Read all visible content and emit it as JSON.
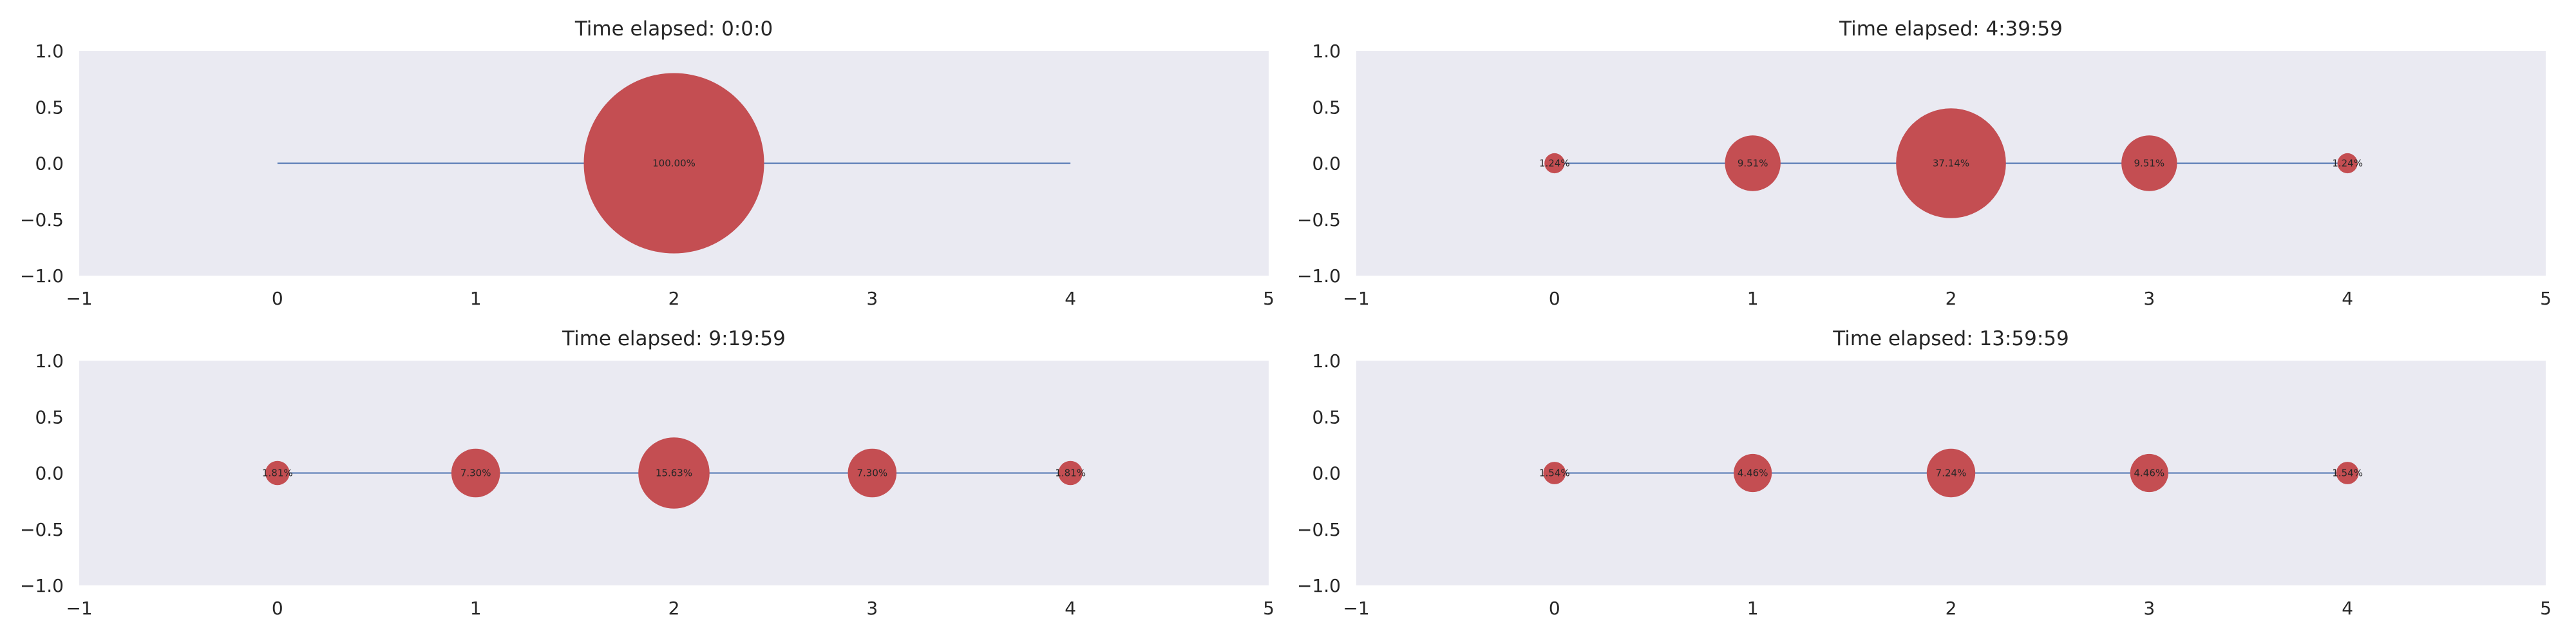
{
  "chart_data": [
    {
      "type": "scatter",
      "title": "Time elapsed: 0:0:0",
      "xlim": [
        -1,
        5
      ],
      "ylim": [
        -1.0,
        1.0
      ],
      "xticks": [
        "−1",
        "0",
        "1",
        "2",
        "3",
        "4",
        "5"
      ],
      "yticks": [
        "1.0",
        "0.5",
        "0.0",
        "−0.5",
        "−1.0"
      ],
      "line": {
        "x": [
          0,
          4
        ],
        "y": [
          0,
          0
        ]
      },
      "points": [
        {
          "x": 2,
          "y": 0,
          "size_fraction": 1.0,
          "label": "100.00%"
        }
      ]
    },
    {
      "type": "scatter",
      "title": "Time elapsed: 4:39:59",
      "xlim": [
        -1,
        5
      ],
      "ylim": [
        -1.0,
        1.0
      ],
      "xticks": [
        "−1",
        "0",
        "1",
        "2",
        "3",
        "4",
        "5"
      ],
      "yticks": [
        "1.0",
        "0.5",
        "0.0",
        "−0.5",
        "−1.0"
      ],
      "line": {
        "x": [
          0,
          4
        ],
        "y": [
          0,
          0
        ]
      },
      "points": [
        {
          "x": 0,
          "y": 0,
          "size_fraction": 0.0124,
          "label": "1.24%"
        },
        {
          "x": 1,
          "y": 0,
          "size_fraction": 0.0951,
          "label": "9.51%"
        },
        {
          "x": 2,
          "y": 0,
          "size_fraction": 0.3714,
          "label": "37.14%"
        },
        {
          "x": 3,
          "y": 0,
          "size_fraction": 0.0951,
          "label": "9.51%"
        },
        {
          "x": 4,
          "y": 0,
          "size_fraction": 0.0124,
          "label": "1.24%"
        }
      ]
    },
    {
      "type": "scatter",
      "title": "Time elapsed: 9:19:59",
      "xlim": [
        -1,
        5
      ],
      "ylim": [
        -1.0,
        1.0
      ],
      "xticks": [
        "−1",
        "0",
        "1",
        "2",
        "3",
        "4",
        "5"
      ],
      "yticks": [
        "1.0",
        "0.5",
        "0.0",
        "−0.5",
        "−1.0"
      ],
      "line": {
        "x": [
          0,
          4
        ],
        "y": [
          0,
          0
        ]
      },
      "points": [
        {
          "x": 0,
          "y": 0,
          "size_fraction": 0.0181,
          "label": "1.81%"
        },
        {
          "x": 1,
          "y": 0,
          "size_fraction": 0.073,
          "label": "7.30%"
        },
        {
          "x": 2,
          "y": 0,
          "size_fraction": 0.1563,
          "label": "15.63%"
        },
        {
          "x": 3,
          "y": 0,
          "size_fraction": 0.073,
          "label": "7.30%"
        },
        {
          "x": 4,
          "y": 0,
          "size_fraction": 0.0181,
          "label": "1.81%"
        }
      ]
    },
    {
      "type": "scatter",
      "title": "Time elapsed: 13:59:59",
      "xlim": [
        -1,
        5
      ],
      "ylim": [
        -1.0,
        1.0
      ],
      "xticks": [
        "−1",
        "0",
        "1",
        "2",
        "3",
        "4",
        "5"
      ],
      "yticks": [
        "1.0",
        "0.5",
        "0.0",
        "−0.5",
        "−1.0"
      ],
      "line": {
        "x": [
          0,
          4
        ],
        "y": [
          0,
          0
        ]
      },
      "points": [
        {
          "x": 0,
          "y": 0,
          "size_fraction": 0.0154,
          "label": "1.54%"
        },
        {
          "x": 1,
          "y": 0,
          "size_fraction": 0.0446,
          "label": "4.46%"
        },
        {
          "x": 2,
          "y": 0,
          "size_fraction": 0.0724,
          "label": "7.24%"
        },
        {
          "x": 3,
          "y": 0,
          "size_fraction": 0.0446,
          "label": "4.46%"
        },
        {
          "x": 4,
          "y": 0,
          "size_fraction": 0.0154,
          "label": "1.54%"
        }
      ]
    }
  ],
  "colors": {
    "panel_background": "#EAEAF2",
    "circle_fill": "#C44E52",
    "line": "#4C72B0",
    "text": "#262626"
  }
}
